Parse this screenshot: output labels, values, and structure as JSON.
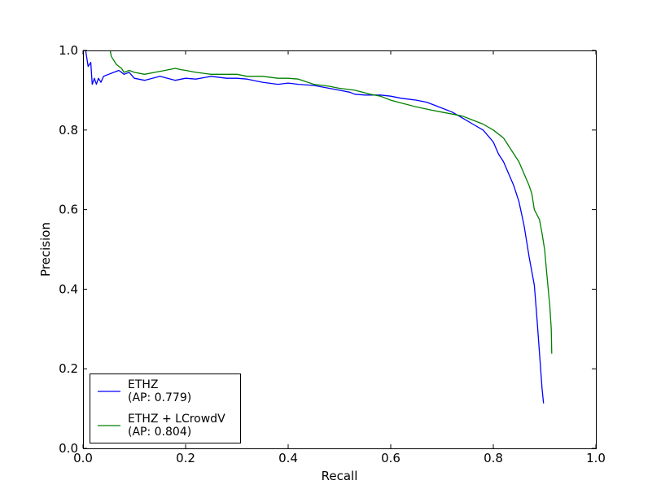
{
  "chart_data": {
    "type": "line",
    "title": "",
    "xlabel": "Recall",
    "ylabel": "Precision",
    "xlim": [
      0.0,
      1.0
    ],
    "ylim": [
      0.0,
      1.0
    ],
    "x_ticks": [
      "0.0",
      "0.2",
      "0.4",
      "0.6",
      "0.8",
      "1.0"
    ],
    "y_ticks": [
      "0.0",
      "0.2",
      "0.4",
      "0.6",
      "0.8",
      "1.0"
    ],
    "grid": false,
    "legend_position": "bottom-left",
    "series": [
      {
        "name": "ETHZ",
        "legend_lines": [
          "ETHZ",
          "(AP: 0.779)"
        ],
        "color": "#0000ff",
        "points": [
          [
            0.005,
            1.0
          ],
          [
            0.01,
            0.96
          ],
          [
            0.015,
            0.97
          ],
          [
            0.018,
            0.915
          ],
          [
            0.022,
            0.93
          ],
          [
            0.026,
            0.915
          ],
          [
            0.03,
            0.93
          ],
          [
            0.035,
            0.92
          ],
          [
            0.04,
            0.935
          ],
          [
            0.05,
            0.94
          ],
          [
            0.06,
            0.945
          ],
          [
            0.07,
            0.95
          ],
          [
            0.08,
            0.94
          ],
          [
            0.09,
            0.945
          ],
          [
            0.1,
            0.93
          ],
          [
            0.12,
            0.925
          ],
          [
            0.15,
            0.935
          ],
          [
            0.18,
            0.925
          ],
          [
            0.2,
            0.93
          ],
          [
            0.22,
            0.928
          ],
          [
            0.25,
            0.935
          ],
          [
            0.28,
            0.93
          ],
          [
            0.3,
            0.93
          ],
          [
            0.32,
            0.928
          ],
          [
            0.35,
            0.92
          ],
          [
            0.38,
            0.915
          ],
          [
            0.4,
            0.918
          ],
          [
            0.42,
            0.915
          ],
          [
            0.45,
            0.912
          ],
          [
            0.48,
            0.905
          ],
          [
            0.5,
            0.9
          ],
          [
            0.52,
            0.895
          ],
          [
            0.53,
            0.89
          ],
          [
            0.55,
            0.888
          ],
          [
            0.58,
            0.888
          ],
          [
            0.6,
            0.885
          ],
          [
            0.62,
            0.88
          ],
          [
            0.65,
            0.875
          ],
          [
            0.67,
            0.87
          ],
          [
            0.68,
            0.865
          ],
          [
            0.7,
            0.855
          ],
          [
            0.72,
            0.845
          ],
          [
            0.74,
            0.83
          ],
          [
            0.76,
            0.815
          ],
          [
            0.78,
            0.8
          ],
          [
            0.79,
            0.785
          ],
          [
            0.8,
            0.77
          ],
          [
            0.81,
            0.74
          ],
          [
            0.82,
            0.72
          ],
          [
            0.83,
            0.69
          ],
          [
            0.84,
            0.66
          ],
          [
            0.85,
            0.62
          ],
          [
            0.86,
            0.56
          ],
          [
            0.87,
            0.48
          ],
          [
            0.88,
            0.41
          ],
          [
            0.885,
            0.33
          ],
          [
            0.89,
            0.24
          ],
          [
            0.895,
            0.15
          ],
          [
            0.898,
            0.113
          ]
        ]
      },
      {
        "name": "ETHZ + LCrowdV",
        "legend_lines": [
          "ETHZ + LCrowdV",
          "(AP: 0.804)"
        ],
        "color": "#008000",
        "points": [
          [
            0.053,
            1.0
          ],
          [
            0.055,
            0.985
          ],
          [
            0.06,
            0.975
          ],
          [
            0.065,
            0.965
          ],
          [
            0.07,
            0.96
          ],
          [
            0.075,
            0.955
          ],
          [
            0.08,
            0.945
          ],
          [
            0.09,
            0.95
          ],
          [
            0.1,
            0.945
          ],
          [
            0.12,
            0.94
          ],
          [
            0.14,
            0.945
          ],
          [
            0.16,
            0.95
          ],
          [
            0.18,
            0.955
          ],
          [
            0.19,
            0.952
          ],
          [
            0.2,
            0.95
          ],
          [
            0.22,
            0.945
          ],
          [
            0.25,
            0.94
          ],
          [
            0.28,
            0.94
          ],
          [
            0.3,
            0.94
          ],
          [
            0.32,
            0.935
          ],
          [
            0.35,
            0.935
          ],
          [
            0.38,
            0.93
          ],
          [
            0.4,
            0.93
          ],
          [
            0.42,
            0.928
          ],
          [
            0.45,
            0.915
          ],
          [
            0.48,
            0.91
          ],
          [
            0.5,
            0.905
          ],
          [
            0.53,
            0.9
          ],
          [
            0.56,
            0.89
          ],
          [
            0.58,
            0.885
          ],
          [
            0.6,
            0.875
          ],
          [
            0.62,
            0.868
          ],
          [
            0.65,
            0.858
          ],
          [
            0.68,
            0.85
          ],
          [
            0.7,
            0.845
          ],
          [
            0.72,
            0.84
          ],
          [
            0.74,
            0.835
          ],
          [
            0.76,
            0.825
          ],
          [
            0.78,
            0.815
          ],
          [
            0.8,
            0.8
          ],
          [
            0.81,
            0.79
          ],
          [
            0.82,
            0.78
          ],
          [
            0.83,
            0.76
          ],
          [
            0.84,
            0.74
          ],
          [
            0.85,
            0.72
          ],
          [
            0.86,
            0.69
          ],
          [
            0.87,
            0.66
          ],
          [
            0.875,
            0.64
          ],
          [
            0.88,
            0.6
          ],
          [
            0.89,
            0.575
          ],
          [
            0.895,
            0.54
          ],
          [
            0.9,
            0.5
          ],
          [
            0.905,
            0.43
          ],
          [
            0.91,
            0.36
          ],
          [
            0.913,
            0.3
          ],
          [
            0.914,
            0.238
          ]
        ]
      }
    ]
  }
}
